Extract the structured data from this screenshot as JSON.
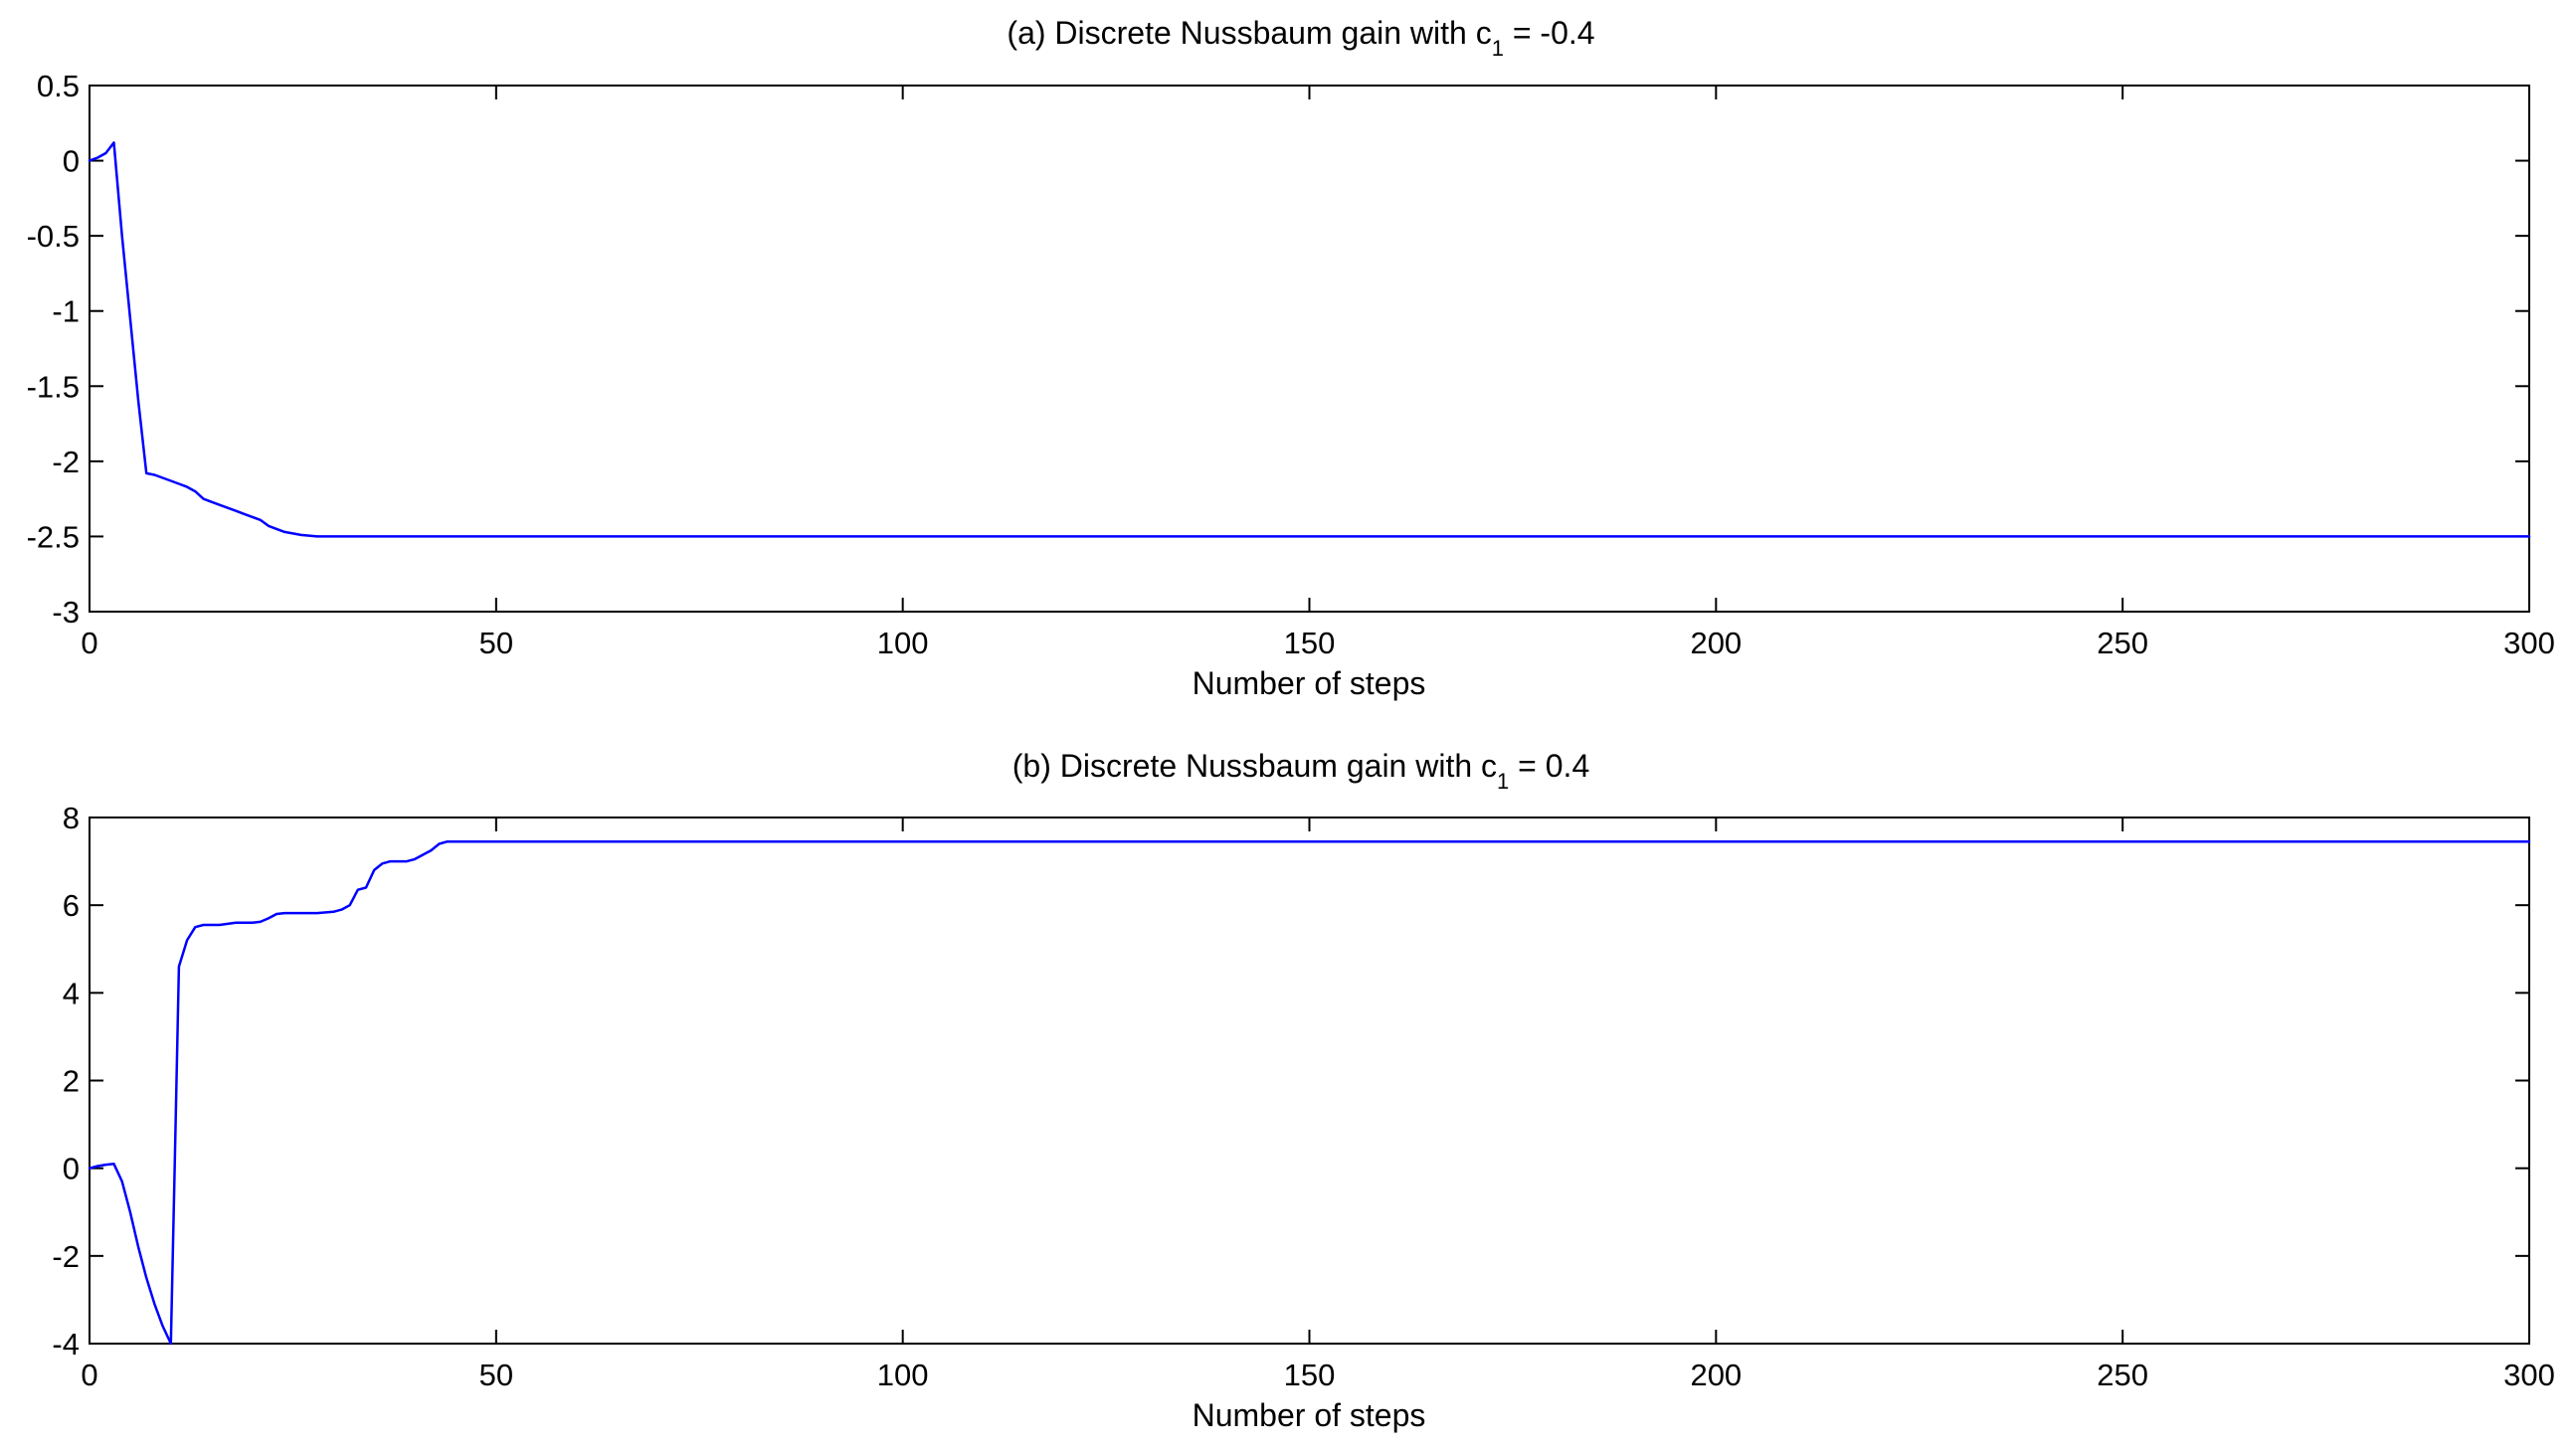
{
  "chart_data": [
    {
      "type": "line",
      "title_prefix": "(a)  Discrete Nussbaum gain with c",
      "title_subscript": "1",
      "title_suffix": " = -0.4",
      "xlabel": "Number of steps",
      "ylabel": "",
      "xlim": [
        0,
        300
      ],
      "ylim": [
        -3,
        0.5
      ],
      "x_ticks": [
        0,
        50,
        100,
        150,
        200,
        250,
        300
      ],
      "y_ticks": [
        0.5,
        0,
        -0.5,
        -1,
        -1.5,
        -2,
        -2.5,
        -3
      ],
      "grid": false,
      "line_color": "#0000ff",
      "series": [
        {
          "x": [
            0,
            1,
            2,
            3,
            4,
            5,
            6,
            7,
            8,
            9,
            10,
            11,
            12,
            13,
            14,
            15,
            16,
            17,
            18,
            19,
            20,
            21,
            22,
            23,
            24,
            25,
            26,
            28,
            30,
            300
          ],
          "y": [
            0,
            0.02,
            0.05,
            0.12,
            -0.5,
            -1.05,
            -1.6,
            -2.08,
            -2.09,
            -2.11,
            -2.13,
            -2.15,
            -2.17,
            -2.2,
            -2.25,
            -2.27,
            -2.29,
            -2.31,
            -2.33,
            -2.35,
            -2.37,
            -2.39,
            -2.43,
            -2.45,
            -2.47,
            -2.48,
            -2.49,
            -2.5,
            -2.5,
            -2.5
          ]
        }
      ]
    },
    {
      "type": "line",
      "title_prefix": "(b)  Discrete Nussbaum gain with c",
      "title_subscript": "1",
      "title_suffix": " = 0.4",
      "xlabel": "Number of steps",
      "ylabel": "",
      "xlim": [
        0,
        300
      ],
      "ylim": [
        -4,
        8
      ],
      "x_ticks": [
        0,
        50,
        100,
        150,
        200,
        250,
        300
      ],
      "y_ticks": [
        8,
        6,
        4,
        2,
        0,
        -2,
        -4
      ],
      "grid": false,
      "line_color": "#0000ff",
      "series": [
        {
          "x": [
            0,
            1,
            2,
            3,
            4,
            5,
            6,
            7,
            8,
            9,
            10,
            10.5,
            11,
            12,
            13,
            14,
            16,
            18,
            20,
            21,
            22,
            23,
            24,
            26,
            28,
            30,
            31,
            32,
            33,
            34,
            35,
            36,
            37,
            38,
            39,
            40,
            41,
            42,
            43,
            44,
            45,
            50,
            300
          ],
          "y": [
            0,
            0.05,
            0.08,
            0.1,
            -0.3,
            -1.0,
            -1.8,
            -2.5,
            -3.1,
            -3.6,
            -4.0,
            0.3,
            4.6,
            5.2,
            5.5,
            5.55,
            5.55,
            5.6,
            5.6,
            5.62,
            5.7,
            5.8,
            5.82,
            5.82,
            5.82,
            5.85,
            5.9,
            6.0,
            6.35,
            6.4,
            6.8,
            6.95,
            7.0,
            7.0,
            7.0,
            7.05,
            7.15,
            7.25,
            7.4,
            7.45,
            7.45,
            7.45,
            7.45
          ]
        }
      ]
    }
  ]
}
